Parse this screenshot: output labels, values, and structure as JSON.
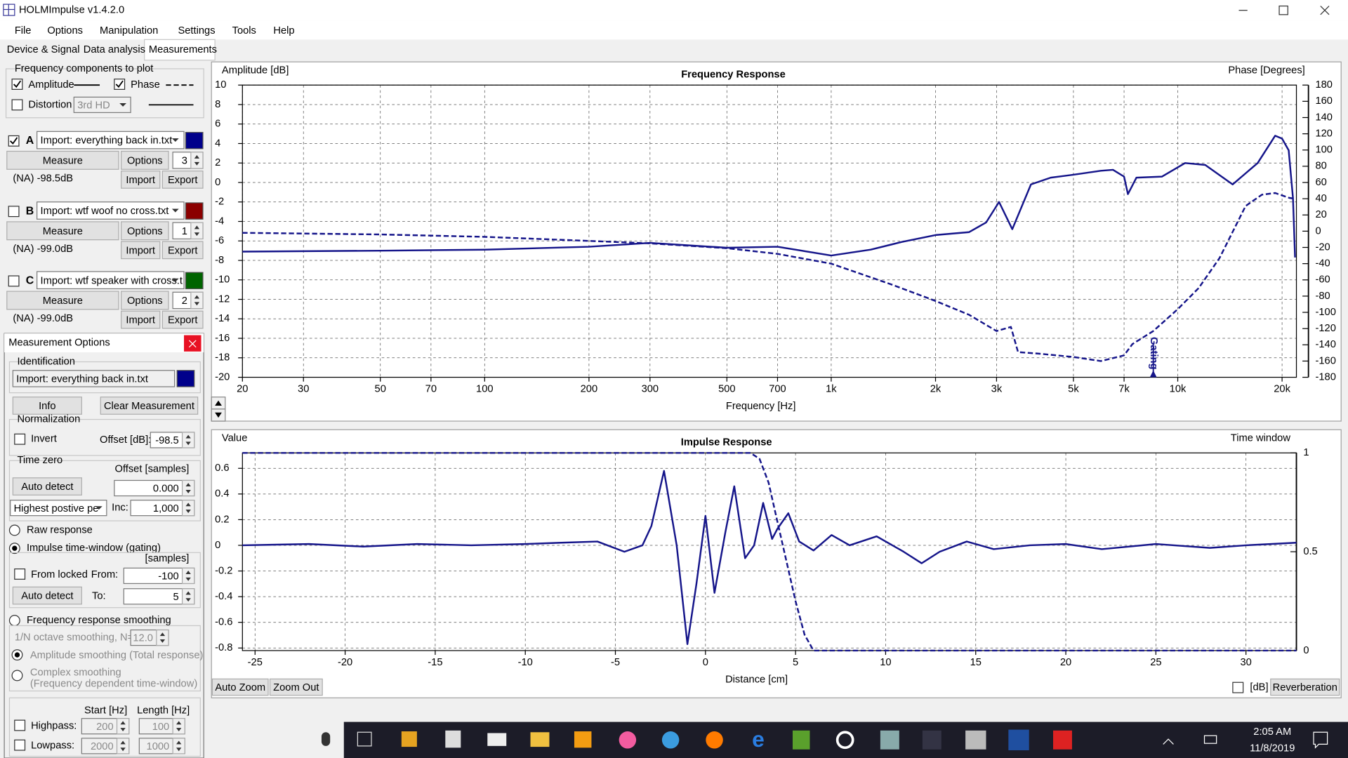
{
  "window": {
    "title": "HOLMImpulse  v1.4.2.0"
  },
  "menu": [
    "File",
    "Options",
    "Manipulation",
    "Settings",
    "Tools",
    "Help"
  ],
  "tabs": [
    "Device & Signal",
    "Data analysis",
    "Measurements"
  ],
  "components": {
    "label": "Frequency components to plot",
    "amplitude": "Amplitude",
    "amplitude_checked": true,
    "phase": "Phase",
    "phase_checked": true,
    "distortion": "Distortion",
    "distortion_checked": false,
    "distortion_select": "3rd HD"
  },
  "buttons": {
    "measure": "Measure",
    "options": "Options",
    "import": "Import",
    "export": "Export"
  },
  "measurements": [
    {
      "letter": "A",
      "name": "Import: everything back in.txt",
      "color": "#00008b",
      "checked": true,
      "count": "3",
      "level": "(NA) -98.5dB"
    },
    {
      "letter": "B",
      "name": "Import: wtf woof no cross.txt",
      "color": "#8b0000",
      "checked": false,
      "count": "1",
      "level": "(NA) -99.0dB"
    },
    {
      "letter": "C",
      "name": "Import: wtf speaker with cross.t",
      "color": "#006400",
      "checked": false,
      "count": "2",
      "level": "(NA) -99.0dB"
    }
  ],
  "options_panel": {
    "title": "Measurement Options",
    "identification": "Identification",
    "ident_name": "Import: everything back in.txt",
    "ident_color": "#00008b",
    "info": "Info",
    "clear": "Clear Measurement",
    "normalization": "Normalization",
    "invert": "Invert",
    "offset_db_label": "Offset [dB]:",
    "offset_db": "-98.5",
    "time_zero": "Time zero",
    "offset_samples": "Offset [samples]",
    "auto_detect": "Auto detect",
    "offset_value": "0.000",
    "peak_select": "Highest postive pe",
    "inc": "Inc:",
    "inc_value": "1,000",
    "raw": "Raw response",
    "gating": "Impulse time-window (gating)",
    "samples": "[samples]",
    "from_locked": "From locked",
    "from": "From:",
    "from_value": "-100",
    "to": "To:",
    "to_value": "5",
    "smoothing": "Frequency response smoothing",
    "octave": "1/N octave smoothing, N=",
    "octave_value": "12.0",
    "amp_smoothing": "Amplitude smoothing (Total response)",
    "complex": "Complex smoothing",
    "complex_note": "(Frequency dependent time-window)",
    "start": "Start [Hz]",
    "length": "Length [Hz]",
    "highpass": "Highpass:",
    "hp_start": "200",
    "hp_length": "100",
    "lowpass": "Lowpass:",
    "lp_start": "2000",
    "lp_length": "1000"
  },
  "frequency_plot": {
    "type": "line",
    "title": "Frequency Response",
    "y_label": "Amplitude [dB]",
    "y2_label": "Phase [Degrees]",
    "x_label": "Frequency [Hz]",
    "x_log": true,
    "grid": true,
    "xlim": [
      20,
      22000
    ],
    "xticks": [
      20,
      30,
      50,
      70,
      100,
      200,
      300,
      500,
      700,
      {
        "value": 1000,
        "label": "1k"
      },
      {
        "value": 2000,
        "label": "2k"
      },
      {
        "value": 3000,
        "label": "3k"
      },
      {
        "value": 5000,
        "label": "5k"
      },
      {
        "value": 7000,
        "label": "7k"
      },
      {
        "value": 10000,
        "label": "10k"
      },
      {
        "value": 20000,
        "label": "20k"
      }
    ],
    "ylim": [
      -20,
      10
    ],
    "yticks": [
      10,
      8,
      6,
      4,
      2,
      0,
      -2,
      -4,
      -6,
      -8,
      -10,
      -12,
      -14,
      -16,
      -18,
      -20
    ],
    "y2lim": [
      -180,
      180
    ],
    "y2ticks": [
      180,
      160,
      140,
      120,
      100,
      80,
      60,
      40,
      20,
      0,
      -20,
      -40,
      -60,
      -80,
      -100,
      -120,
      -140,
      -160,
      -180
    ],
    "series": [
      {
        "color": "#15158a",
        "style": "solid",
        "x": [
          20,
          50,
          100,
          200,
          300,
          500,
          700,
          1000,
          1300,
          1600,
          2000,
          2500,
          2800,
          3050,
          3330,
          3770,
          4300,
          5000,
          6000,
          6500,
          7000,
          7180,
          7600,
          9000,
          10500,
          12000,
          14400,
          17000,
          19100,
          20000,
          20900,
          21500,
          21800
        ],
        "values": [
          -7.1,
          -7.0,
          -6.9,
          -6.6,
          -6.2,
          -6.7,
          -6.6,
          -7.5,
          -6.9,
          -6.1,
          -5.4,
          -5.1,
          -4.1,
          -2.0,
          -4.8,
          -0.2,
          0.5,
          0.8,
          1.2,
          1.3,
          0.6,
          -1.2,
          0.5,
          0.6,
          2.0,
          1.8,
          -0.2,
          2.0,
          4.8,
          4.5,
          3.3,
          -1.6,
          -7.7
        ]
      },
      {
        "color": "#15158a",
        "style": "dashed",
        "axis": "y2",
        "x": [
          20,
          50,
          100,
          200,
          300,
          500,
          700,
          1000,
          1500,
          2000,
          2500,
          3000,
          3300,
          3460,
          4000,
          5000,
          6000,
          7000,
          7400,
          8500,
          10000,
          11500,
          13200,
          15700,
          17500,
          19100,
          21000,
          21800
        ],
        "values": [
          -2,
          -4,
          -7,
          -12,
          -15,
          -21,
          -28,
          -40,
          -66,
          -86,
          -103,
          -123,
          -118,
          -149,
          -151,
          -155,
          -160,
          -153,
          -139,
          -123,
          -96,
          -70,
          -33,
          31,
          45,
          47,
          41,
          40
        ]
      }
    ],
    "annotations": [
      {
        "text": "Gating",
        "x": 8500
      }
    ]
  },
  "impulse_plot": {
    "type": "line",
    "title": "Impulse Response",
    "y_label": "Value",
    "y2_label": "Time window",
    "x_label": "Distance [cm]",
    "x_log": false,
    "grid": true,
    "xlim": [
      -25.7,
      32.8
    ],
    "xticks": [
      -25,
      -20,
      -15,
      -10,
      -5,
      0,
      5,
      10,
      15,
      20,
      25,
      30
    ],
    "ylim": [
      -0.82,
      0.72
    ],
    "yticks": [
      0.6,
      0.4,
      0.2,
      0,
      -0.2,
      -0.4,
      -0.6,
      -0.8
    ],
    "y2lim": [
      0,
      1
    ],
    "y2ticks": [
      1,
      0.5,
      0
    ],
    "series": [
      {
        "color": "#15158a",
        "style": "solid",
        "x": [
          -25.7,
          -22,
          -19,
          -16,
          -13,
          -10,
          -8,
          -6,
          -4.5,
          -3.5,
          -3,
          -2.3,
          -1.6,
          -1,
          -0.5,
          0,
          0.5,
          1.1,
          1.6,
          2.2,
          2.7,
          3.2,
          3.7,
          4,
          4.6,
          5.2,
          6,
          7,
          8,
          9.5,
          11,
          12,
          13,
          14.5,
          16,
          18,
          20,
          22,
          25,
          28,
          30,
          32.8
        ],
        "values": [
          0,
          0.01,
          -0.01,
          0.01,
          0,
          0.01,
          0.02,
          0.03,
          -0.05,
          0,
          0.15,
          0.58,
          0,
          -0.77,
          -0.3,
          0.23,
          -0.37,
          0.1,
          0.46,
          -0.1,
          0,
          0.33,
          0.05,
          0.13,
          0.25,
          0.03,
          -0.04,
          0.08,
          0,
          0.07,
          -0.05,
          -0.14,
          -0.05,
          0.03,
          -0.03,
          0,
          0.01,
          -0.03,
          0.01,
          -0.02,
          0,
          0.02
        ]
      },
      {
        "color": "#15158a",
        "style": "dashed",
        "axis": "y2",
        "x": [
          -25.7,
          2.5,
          3,
          3.5,
          4,
          4.5,
          5,
          5.5,
          6,
          32.8
        ],
        "values": [
          1,
          1,
          0.97,
          0.85,
          0.65,
          0.45,
          0.25,
          0.08,
          0,
          0
        ]
      }
    ]
  },
  "plot_buttons": {
    "auto_zoom": "Auto Zoom",
    "zoom_out": "Zoom Out",
    "db": "[dB]",
    "reverberation": "Reverberation"
  },
  "taskbar": {
    "time": "2:05 AM",
    "date": "11/8/2019"
  }
}
